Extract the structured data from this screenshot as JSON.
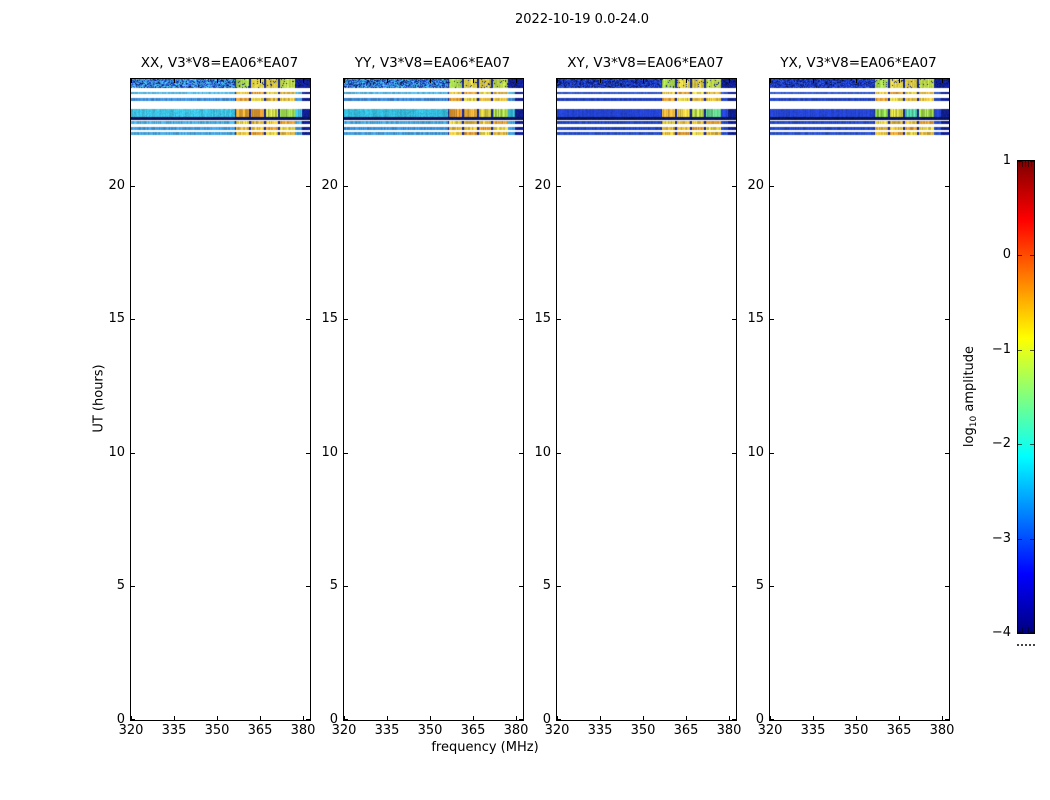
{
  "figure": {
    "title": "2022-10-19 0.0-24.0",
    "xlabel": "frequency (MHz)",
    "ylabel": "UT (hours)",
    "colorbar_label": {
      "prefix": "log",
      "sub": "10",
      "suffix": " amplitude"
    }
  },
  "chart_data": {
    "type": "heatmap",
    "title": "2022-10-19 0.0-24.0",
    "xlabel": "frequency (MHz)",
    "ylabel": "UT (hours)",
    "xlim": [
      320,
      382.5
    ],
    "ylim": [
      0,
      24
    ],
    "xticks": [
      320,
      335,
      350,
      365,
      380
    ],
    "yticks": [
      0,
      5,
      10,
      15,
      20
    ],
    "grid": false,
    "panels": [
      {
        "sym": "XX",
        "title": "XX, V3*V8=EA06*EA07",
        "seed": 11,
        "noisy_palette": [
          "#2f6fd2",
          "#3f9ade",
          "#4cb6e6",
          "#1a3ab8"
        ],
        "thin_colors": [
          "#52b6e2",
          "#3f8ed8",
          "#48aade",
          "#3f96d8",
          "#45a2da"
        ],
        "bright_color": "#3cc2e2",
        "bright_blocks": [
          "#e8a832",
          "#e09a30",
          "#cdd848",
          "#9ad44e"
        ]
      },
      {
        "sym": "YY",
        "title": "YY, V3*V8=EA06*EA07",
        "seed": 23,
        "noisy_palette": [
          "#2a64cc",
          "#3990da",
          "#45b0e2",
          "#16309f"
        ],
        "thin_colors": [
          "#4cb0e0",
          "#3a86d4",
          "#44a4dc",
          "#3a8ed6",
          "#409ada"
        ],
        "bright_color": "#34bada",
        "bright_blocks": [
          "#e89a2e",
          "#e8ae34",
          "#d8cc42",
          "#aad84c"
        ]
      },
      {
        "sym": "XY",
        "title": "XY, V3*V8=EA06*EA07",
        "seed": 37,
        "noisy_palette": [
          "#1630b2",
          "#1f3fc4",
          "#2a52cc",
          "#0e1f8e"
        ],
        "thin_colors": [
          "#2a52c8",
          "#1f3fbe",
          "#2448c4",
          "#2044c0",
          "#284ec6"
        ],
        "bright_color": "#2343d2",
        "bright_blocks": [
          "#e8b23a",
          "#e8cc42",
          "#b8d84a",
          "#60cc88"
        ]
      },
      {
        "sym": "YX",
        "title": "YX, V3*V8=EA06*EA07",
        "seed": 51,
        "noisy_palette": [
          "#1733b6",
          "#2142c6",
          "#2c54ce",
          "#102290"
        ],
        "thin_colors": [
          "#2c54ca",
          "#2142c0",
          "#264ac6",
          "#2246c2",
          "#2a50c8"
        ],
        "bright_color": "#2545d4",
        "bright_blocks": [
          "#8ed44e",
          "#d8d846",
          "#50c8a0",
          "#a0d84a"
        ]
      }
    ],
    "time_bands": [
      {
        "kind": "noisy",
        "ut": [
          23.67,
          24.0
        ]
      },
      {
        "kind": "thin",
        "ut": [
          23.42,
          23.53
        ],
        "i": 0
      },
      {
        "kind": "thin",
        "ut": [
          23.17,
          23.3
        ],
        "i": 1
      },
      {
        "kind": "bright",
        "ut": [
          22.57,
          22.87
        ]
      },
      {
        "kind": "edge",
        "ut": [
          22.47,
          22.57
        ]
      },
      {
        "kind": "thin",
        "ut": [
          22.32,
          22.43
        ],
        "i": 2
      },
      {
        "kind": "thin",
        "ut": [
          22.1,
          22.22
        ],
        "i": 3
      },
      {
        "kind": "thin",
        "ut": [
          21.92,
          22.02
        ],
        "i": 4
      }
    ],
    "rfi": {
      "region_start_mhz": 356.1,
      "blocks_mhz": [
        [
          356.4,
          360.9
        ],
        [
          361.6,
          366.1
        ],
        [
          366.8,
          371.3
        ],
        [
          372.0,
          377.0
        ]
      ],
      "tail_mhz": [
        377.0,
        382.5
      ],
      "separator_color": "#0e1f92",
      "tail_navy": "#101e90",
      "edge_color": "#071257",
      "speck_color": "#02103a",
      "noisy_block_colors": [
        "#a6d64c",
        "#e0d246",
        "#d2c240",
        "#bcd84a"
      ],
      "thin_block_colors": [
        "#e8c23c",
        "#e09c30",
        "#e4d044",
        "#d8b03a"
      ]
    },
    "colorbar": {
      "label": "log10 amplitude",
      "ticks": [
        1,
        0,
        -1,
        -2,
        -3,
        -4
      ],
      "vmin": -4,
      "vmax": 1,
      "colormap": "jet",
      "jet_stops": [
        [
          0,
          "#000080"
        ],
        [
          0.125,
          "#0000ff"
        ],
        [
          0.375,
          "#00ffff"
        ],
        [
          0.625,
          "#ffff00"
        ],
        [
          0.875,
          "#ff0000"
        ],
        [
          1,
          "#800000"
        ]
      ]
    }
  }
}
